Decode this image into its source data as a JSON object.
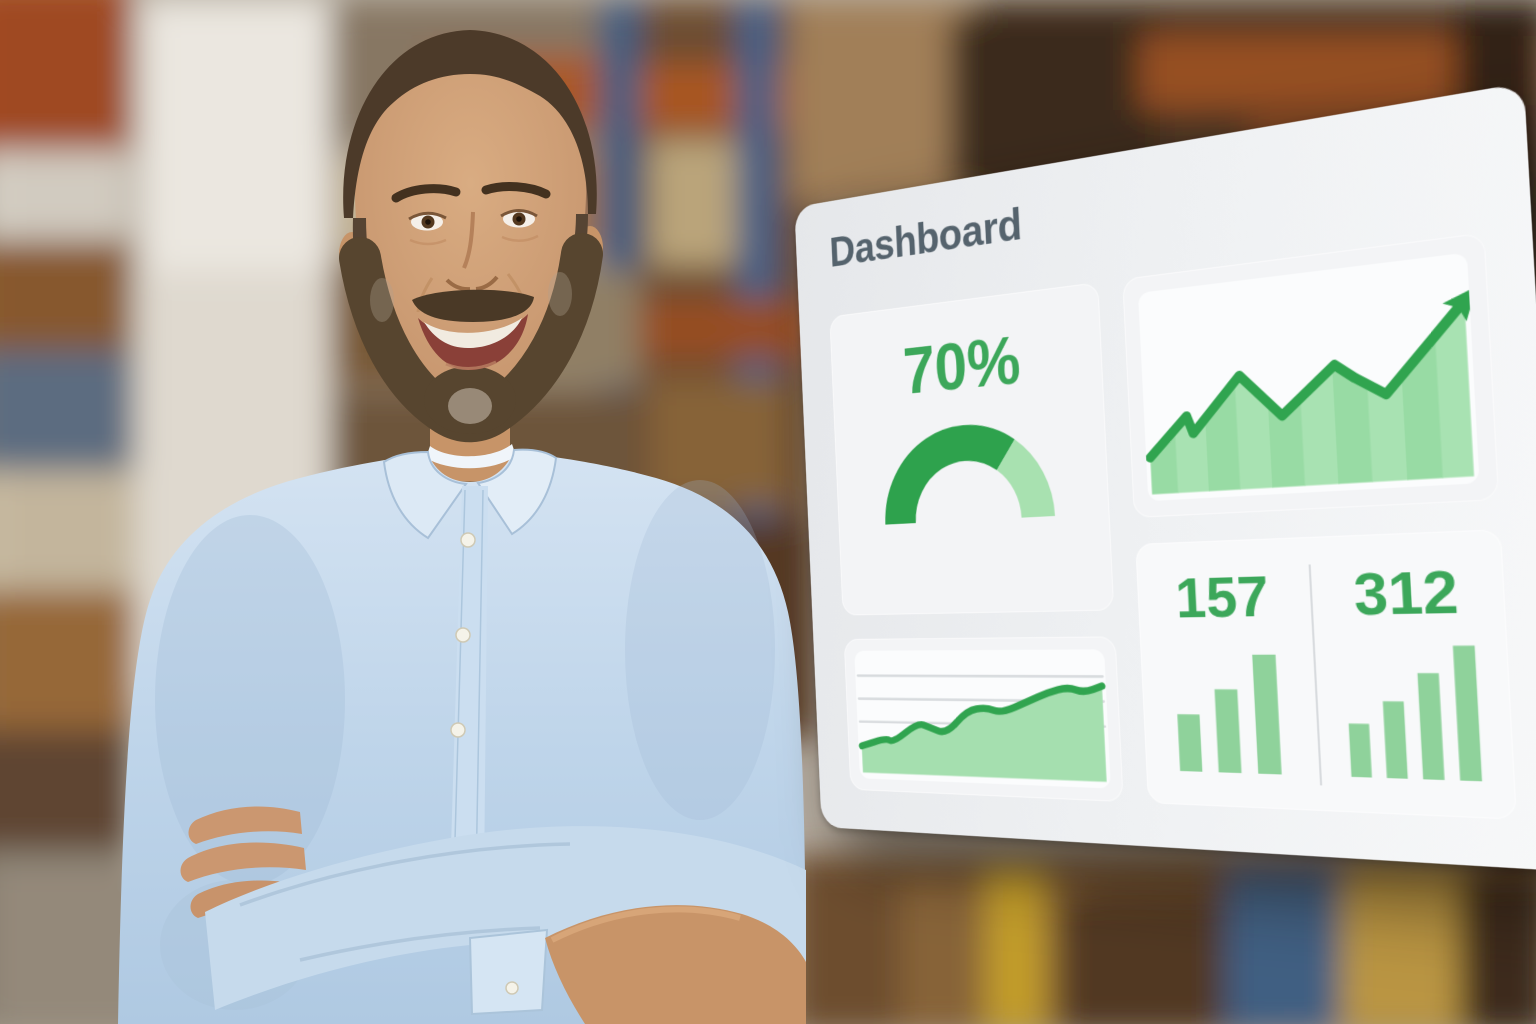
{
  "dashboard": {
    "title": "Dashboard",
    "title_color": "#55636D",
    "panel_bg": "#EFF1F3",
    "tile_bg": "#F3F4F6",
    "chart_area_bg": "#FBFCFD",
    "accent_green": "#3CA75A",
    "divider_color": "#D8DBDE",
    "gauge": {
      "label": "70%"
    },
    "stats": [
      {
        "label": "157"
      },
      {
        "label": "312"
      }
    ]
  },
  "chart_data": [
    {
      "type": "gauge",
      "title": "completion-gauge",
      "value": 70,
      "max": 100,
      "label": "70%",
      "color_value": "#2EA24D",
      "color_remainder": "#A8E1B0"
    },
    {
      "type": "area",
      "title": "upward-trend-with-arrow",
      "x": [
        0,
        13,
        15,
        31,
        44,
        61,
        67,
        76,
        100
      ],
      "values": [
        21,
        43,
        33,
        63,
        39,
        64,
        56,
        46,
        91
      ],
      "ylim": [
        0,
        100
      ],
      "line_color": "#30A44F",
      "fill_colors": [
        "#98DBA4",
        "#A8E2B2"
      ],
      "arrow": true,
      "grid": false
    },
    {
      "type": "area",
      "title": "sparkline-growth",
      "smooth": true,
      "x": [
        0,
        11,
        14,
        25,
        30,
        37,
        46,
        54,
        60,
        71,
        79,
        87,
        93,
        100
      ],
      "values": [
        25,
        33,
        29,
        48,
        44,
        38,
        60,
        63,
        58,
        69,
        77,
        82,
        77,
        83
      ],
      "ylim": [
        0,
        100
      ],
      "line_color": "#30A44F",
      "fill_colors": [
        "#A5DFAF"
      ],
      "gridlines": 3,
      "grid_color": "#D8DBDE"
    },
    {
      "type": "bar",
      "title": "stat-bars",
      "series": [
        {
          "name": "157",
          "values": [
            45,
            65,
            92
          ]
        },
        {
          "name": "312",
          "values": [
            40,
            57,
            78,
            98
          ]
        }
      ],
      "ylim": [
        0,
        100
      ],
      "bar_color": "#8FD29B"
    }
  ],
  "scene_colors": {
    "shirt_blue": "#BFD5EA",
    "skin": "#C9976F",
    "hair_brown": "#4C3A29",
    "warehouse_orange": "#A85A24",
    "warehouse_blue": "#44618A",
    "bright_wall": "#E7E2D8",
    "dark_right_edge": "#241810"
  }
}
